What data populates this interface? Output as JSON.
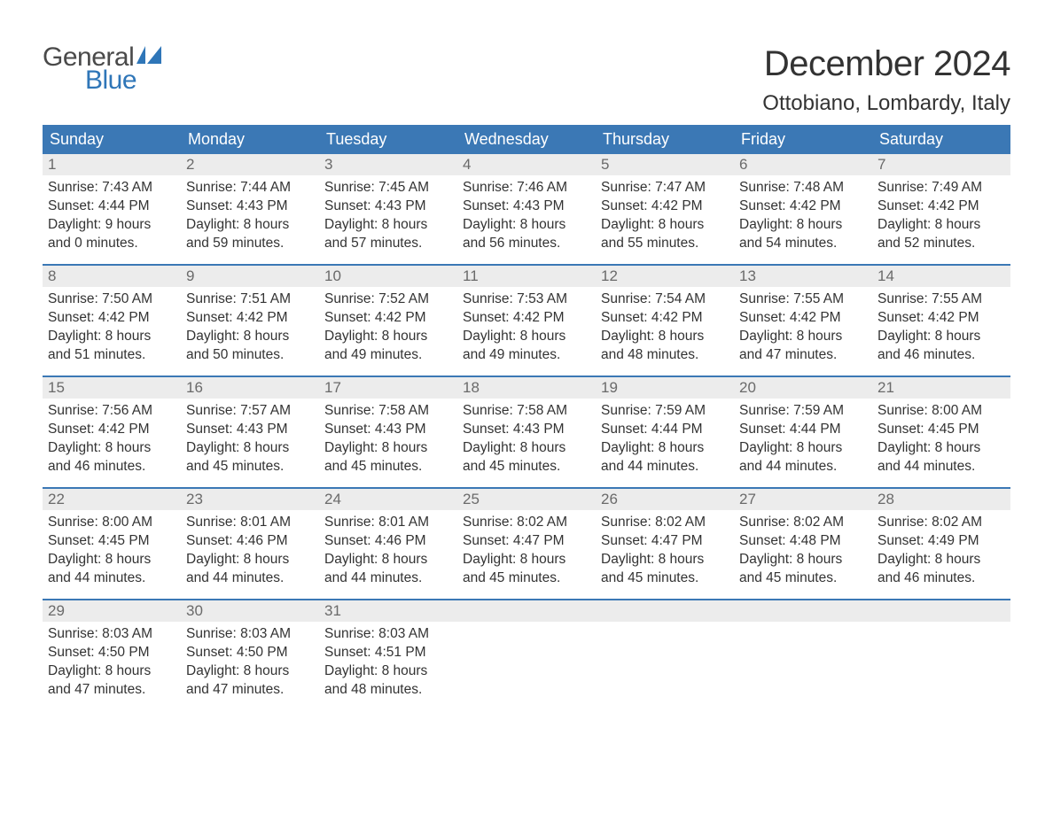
{
  "brand": {
    "name_part1": "General",
    "name_part2": "Blue",
    "flag_color": "#2f76b8"
  },
  "title": "December 2024",
  "location": "Ottobiano, Lombardy, Italy",
  "colors": {
    "header_bg": "#3b78b5",
    "header_text": "#ffffff",
    "week_border": "#3b78b5",
    "daynum_bg": "#ececec",
    "daynum_text": "#6a6a6a",
    "body_text": "#333333",
    "page_bg": "#ffffff"
  },
  "weekdays": [
    "Sunday",
    "Monday",
    "Tuesday",
    "Wednesday",
    "Thursday",
    "Friday",
    "Saturday"
  ],
  "labels": {
    "sunrise": "Sunrise:",
    "sunset": "Sunset:",
    "daylight": "Daylight:"
  },
  "weeks": [
    [
      {
        "n": "1",
        "sunrise": "7:43 AM",
        "sunset": "4:44 PM",
        "dl1": "9 hours",
        "dl2": "and 0 minutes."
      },
      {
        "n": "2",
        "sunrise": "7:44 AM",
        "sunset": "4:43 PM",
        "dl1": "8 hours",
        "dl2": "and 59 minutes."
      },
      {
        "n": "3",
        "sunrise": "7:45 AM",
        "sunset": "4:43 PM",
        "dl1": "8 hours",
        "dl2": "and 57 minutes."
      },
      {
        "n": "4",
        "sunrise": "7:46 AM",
        "sunset": "4:43 PM",
        "dl1": "8 hours",
        "dl2": "and 56 minutes."
      },
      {
        "n": "5",
        "sunrise": "7:47 AM",
        "sunset": "4:42 PM",
        "dl1": "8 hours",
        "dl2": "and 55 minutes."
      },
      {
        "n": "6",
        "sunrise": "7:48 AM",
        "sunset": "4:42 PM",
        "dl1": "8 hours",
        "dl2": "and 54 minutes."
      },
      {
        "n": "7",
        "sunrise": "7:49 AM",
        "sunset": "4:42 PM",
        "dl1": "8 hours",
        "dl2": "and 52 minutes."
      }
    ],
    [
      {
        "n": "8",
        "sunrise": "7:50 AM",
        "sunset": "4:42 PM",
        "dl1": "8 hours",
        "dl2": "and 51 minutes."
      },
      {
        "n": "9",
        "sunrise": "7:51 AM",
        "sunset": "4:42 PM",
        "dl1": "8 hours",
        "dl2": "and 50 minutes."
      },
      {
        "n": "10",
        "sunrise": "7:52 AM",
        "sunset": "4:42 PM",
        "dl1": "8 hours",
        "dl2": "and 49 minutes."
      },
      {
        "n": "11",
        "sunrise": "7:53 AM",
        "sunset": "4:42 PM",
        "dl1": "8 hours",
        "dl2": "and 49 minutes."
      },
      {
        "n": "12",
        "sunrise": "7:54 AM",
        "sunset": "4:42 PM",
        "dl1": "8 hours",
        "dl2": "and 48 minutes."
      },
      {
        "n": "13",
        "sunrise": "7:55 AM",
        "sunset": "4:42 PM",
        "dl1": "8 hours",
        "dl2": "and 47 minutes."
      },
      {
        "n": "14",
        "sunrise": "7:55 AM",
        "sunset": "4:42 PM",
        "dl1": "8 hours",
        "dl2": "and 46 minutes."
      }
    ],
    [
      {
        "n": "15",
        "sunrise": "7:56 AM",
        "sunset": "4:42 PM",
        "dl1": "8 hours",
        "dl2": "and 46 minutes."
      },
      {
        "n": "16",
        "sunrise": "7:57 AM",
        "sunset": "4:43 PM",
        "dl1": "8 hours",
        "dl2": "and 45 minutes."
      },
      {
        "n": "17",
        "sunrise": "7:58 AM",
        "sunset": "4:43 PM",
        "dl1": "8 hours",
        "dl2": "and 45 minutes."
      },
      {
        "n": "18",
        "sunrise": "7:58 AM",
        "sunset": "4:43 PM",
        "dl1": "8 hours",
        "dl2": "and 45 minutes."
      },
      {
        "n": "19",
        "sunrise": "7:59 AM",
        "sunset": "4:44 PM",
        "dl1": "8 hours",
        "dl2": "and 44 minutes."
      },
      {
        "n": "20",
        "sunrise": "7:59 AM",
        "sunset": "4:44 PM",
        "dl1": "8 hours",
        "dl2": "and 44 minutes."
      },
      {
        "n": "21",
        "sunrise": "8:00 AM",
        "sunset": "4:45 PM",
        "dl1": "8 hours",
        "dl2": "and 44 minutes."
      }
    ],
    [
      {
        "n": "22",
        "sunrise": "8:00 AM",
        "sunset": "4:45 PM",
        "dl1": "8 hours",
        "dl2": "and 44 minutes."
      },
      {
        "n": "23",
        "sunrise": "8:01 AM",
        "sunset": "4:46 PM",
        "dl1": "8 hours",
        "dl2": "and 44 minutes."
      },
      {
        "n": "24",
        "sunrise": "8:01 AM",
        "sunset": "4:46 PM",
        "dl1": "8 hours",
        "dl2": "and 44 minutes."
      },
      {
        "n": "25",
        "sunrise": "8:02 AM",
        "sunset": "4:47 PM",
        "dl1": "8 hours",
        "dl2": "and 45 minutes."
      },
      {
        "n": "26",
        "sunrise": "8:02 AM",
        "sunset": "4:47 PM",
        "dl1": "8 hours",
        "dl2": "and 45 minutes."
      },
      {
        "n": "27",
        "sunrise": "8:02 AM",
        "sunset": "4:48 PM",
        "dl1": "8 hours",
        "dl2": "and 45 minutes."
      },
      {
        "n": "28",
        "sunrise": "8:02 AM",
        "sunset": "4:49 PM",
        "dl1": "8 hours",
        "dl2": "and 46 minutes."
      }
    ],
    [
      {
        "n": "29",
        "sunrise": "8:03 AM",
        "sunset": "4:50 PM",
        "dl1": "8 hours",
        "dl2": "and 47 minutes."
      },
      {
        "n": "30",
        "sunrise": "8:03 AM",
        "sunset": "4:50 PM",
        "dl1": "8 hours",
        "dl2": "and 47 minutes."
      },
      {
        "n": "31",
        "sunrise": "8:03 AM",
        "sunset": "4:51 PM",
        "dl1": "8 hours",
        "dl2": "and 48 minutes."
      },
      {
        "empty": true
      },
      {
        "empty": true
      },
      {
        "empty": true
      },
      {
        "empty": true
      }
    ]
  ]
}
